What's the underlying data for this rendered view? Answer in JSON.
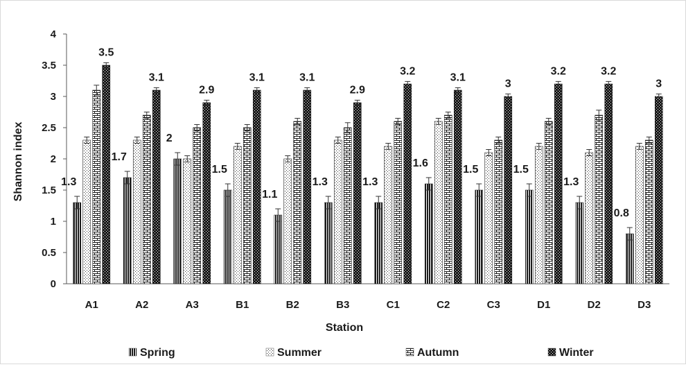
{
  "chart_data": {
    "type": "bar",
    "xlabel": "Station",
    "ylabel": "Shannon index",
    "ylim": [
      0,
      4
    ],
    "yticks": [
      "0",
      "0.5",
      "1",
      "1.5",
      "2",
      "2.5",
      "3",
      "3.5",
      "4"
    ],
    "grid": false,
    "legend_position": "bottom",
    "categories": [
      "A1",
      "A2",
      "A3",
      "B1",
      "B2",
      "B3",
      "C1",
      "C2",
      "C3",
      "D1",
      "D2",
      "D3"
    ],
    "series": [
      {
        "name": "Spring",
        "pattern": "vertical-dense",
        "values": [
          1.3,
          1.7,
          2.0,
          1.5,
          1.1,
          1.3,
          1.3,
          1.6,
          1.5,
          1.5,
          1.3,
          0.8
        ],
        "errors": [
          0.1,
          0.1,
          0.1,
          0.1,
          0.1,
          0.1,
          0.1,
          0.1,
          0.1,
          0.1,
          0.1,
          0.1
        ]
      },
      {
        "name": "Summer",
        "pattern": "dots",
        "values": [
          2.3,
          2.3,
          2.0,
          2.2,
          2.0,
          2.3,
          2.2,
          2.6,
          2.1,
          2.2,
          2.1,
          2.2
        ],
        "errors": [
          0.05,
          0.05,
          0.05,
          0.05,
          0.05,
          0.05,
          0.05,
          0.05,
          0.05,
          0.05,
          0.05,
          0.05
        ]
      },
      {
        "name": "Autumn",
        "pattern": "horizontal-brick",
        "values": [
          3.1,
          2.7,
          2.5,
          2.5,
          2.6,
          2.5,
          2.6,
          2.7,
          2.3,
          2.6,
          2.7,
          2.3
        ],
        "errors": [
          0.08,
          0.05,
          0.05,
          0.05,
          0.05,
          0.08,
          0.05,
          0.05,
          0.05,
          0.05,
          0.08,
          0.05
        ]
      },
      {
        "name": "Winter",
        "pattern": "checker",
        "values": [
          3.5,
          3.1,
          2.9,
          3.1,
          3.1,
          2.9,
          3.2,
          3.1,
          3.0,
          3.2,
          3.2,
          3.0
        ],
        "errors": [
          0.04,
          0.04,
          0.04,
          0.04,
          0.04,
          0.04,
          0.04,
          0.04,
          0.04,
          0.04,
          0.04,
          0.04
        ]
      }
    ],
    "data_labels": {
      "Spring": [
        "1.3",
        "1.7",
        "2",
        "1.5",
        "1.1",
        "1.3",
        "1.3",
        "1.6",
        "1.5",
        "1.5",
        "1.3",
        "0.8"
      ],
      "Winter": [
        "3.5",
        "3.1",
        "2.9",
        "3.1",
        "3.1",
        "2.9",
        "3.2",
        "3.1",
        "3",
        "3.2",
        "3.2",
        "3"
      ]
    }
  }
}
